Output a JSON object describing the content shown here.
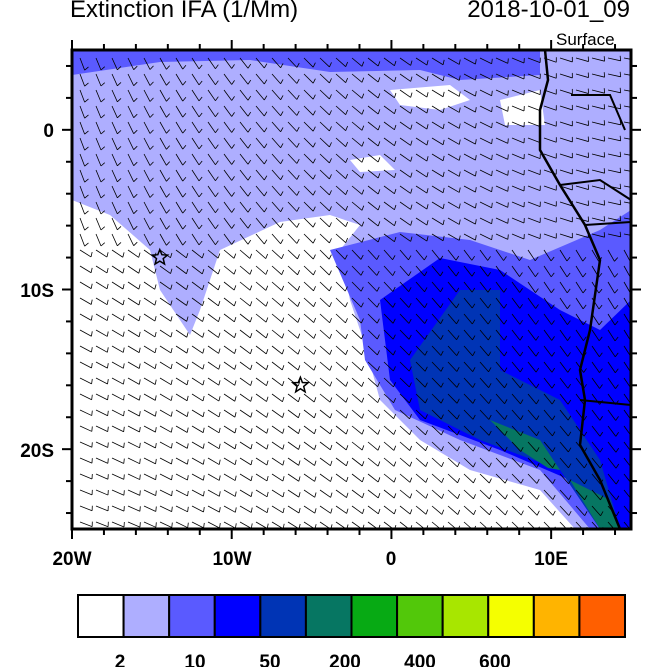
{
  "title_left": "Extinction IFA (1/Mm)",
  "title_right": "2018-10-01_09",
  "level_label": "Surface",
  "map": {
    "lon_range": [
      -20,
      15
    ],
    "lat_range": [
      -25,
      5
    ],
    "x_ticks": [
      "20W",
      "10W",
      "0",
      "10E"
    ],
    "y_ticks": [
      "0",
      "10S",
      "20S"
    ],
    "markers": [
      {
        "type": "star",
        "lon": -14.5,
        "lat": -8
      },
      {
        "type": "star",
        "lon": -5.7,
        "lat": -16
      }
    ]
  },
  "colorbar": {
    "colors": [
      "#ffffff",
      "#aeaeff",
      "#5a5aff",
      "#0000ff",
      "#0034b5",
      "#067662",
      "#07aa14",
      "#52c80a",
      "#a8e600",
      "#f5ff00",
      "#ffb400",
      "#ff5f00",
      "#ff0c00"
    ],
    "labels": [
      "2",
      "10",
      "50",
      "200",
      "400",
      "600"
    ]
  }
}
